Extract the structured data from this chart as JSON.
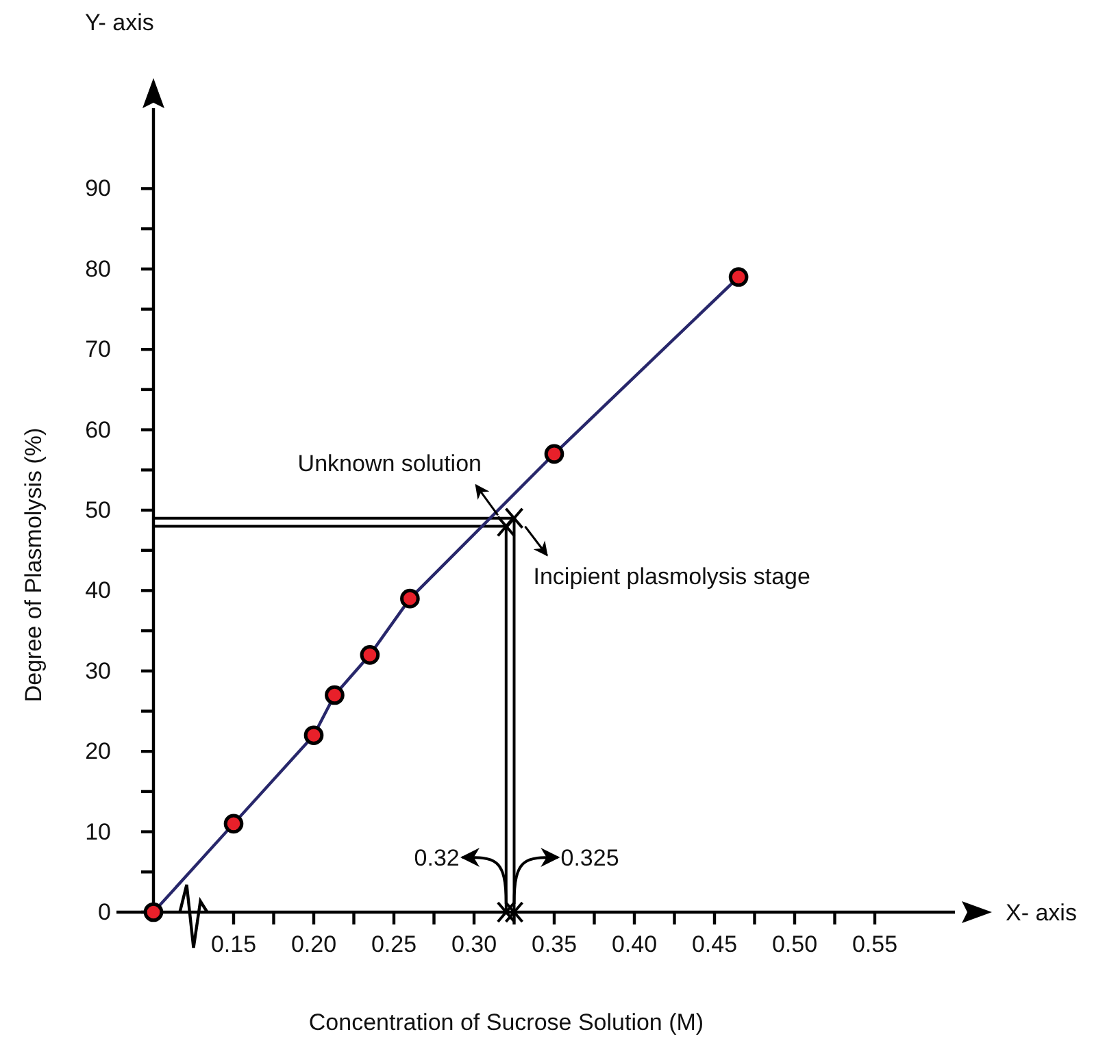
{
  "chart_data": {
    "type": "line",
    "xlabel": "Concentration of Sucrose Solution (M)",
    "ylabel": "Degree of Plasmolysis (%)",
    "x": [
      0.1,
      0.15,
      0.2,
      0.213,
      0.235,
      0.26,
      0.35,
      0.465
    ],
    "series": [
      {
        "color": "#28276b",
        "values": [
          0,
          11,
          22,
          27,
          32,
          39,
          57,
          79
        ]
      },
      {
        "type": "scatter",
        "color": "#e8202a",
        "marker": "circle",
        "values": [
          0,
          11,
          22,
          27,
          32,
          39,
          57,
          79
        ]
      }
    ],
    "xlim": [
      0.1,
      0.6
    ],
    "ylim": [
      0,
      100
    ],
    "xticks": [
      {
        "value": 0.15,
        "label": "0.15"
      },
      {
        "value": 0.175,
        "label": null
      },
      {
        "value": 0.2,
        "label": "0.20"
      },
      {
        "value": 0.225,
        "label": null
      },
      {
        "value": 0.25,
        "label": "0.25"
      },
      {
        "value": 0.275,
        "label": null
      },
      {
        "value": 0.3,
        "label": "0.30"
      },
      {
        "value": 0.325,
        "label": null
      },
      {
        "value": 0.35,
        "label": "0.35"
      },
      {
        "value": 0.375,
        "label": null
      },
      {
        "value": 0.4,
        "label": "0.40"
      },
      {
        "value": 0.425,
        "label": null
      },
      {
        "value": 0.45,
        "label": "0.45"
      },
      {
        "value": 0.475,
        "label": null
      },
      {
        "value": 0.5,
        "label": "0.50"
      },
      {
        "value": 0.525,
        "label": null
      },
      {
        "value": 0.55,
        "label": "0.55"
      }
    ],
    "yticks": [
      0,
      {
        "value": 5,
        "label": null
      },
      10,
      {
        "value": 15,
        "label": null
      },
      20,
      {
        "value": 25,
        "label": null
      },
      30,
      {
        "value": 35,
        "label": null
      },
      40,
      {
        "value": 45,
        "label": null
      },
      50,
      {
        "value": 55,
        "label": null
      },
      60,
      {
        "value": 65,
        "label": null
      },
      70,
      {
        "value": 75,
        "label": null
      },
      80,
      {
        "value": 85,
        "label": null
      },
      90
    ],
    "ref_lines": [
      {
        "axis": "x",
        "value": 0.32,
        "label": "0.32"
      },
      {
        "axis": "x",
        "value": 0.325,
        "label": "0.325"
      },
      {
        "axis": "y",
        "value": 48,
        "label": null
      },
      {
        "axis": "y",
        "value": 49,
        "label": null
      }
    ],
    "annotations": [
      "Y- axis",
      "X- axis",
      {
        "text": "Unknown solution",
        "x": 0.32,
        "y": 48
      },
      {
        "text": "Incipient plasmolysis stage",
        "x": 0.325,
        "y": 49
      }
    ]
  }
}
